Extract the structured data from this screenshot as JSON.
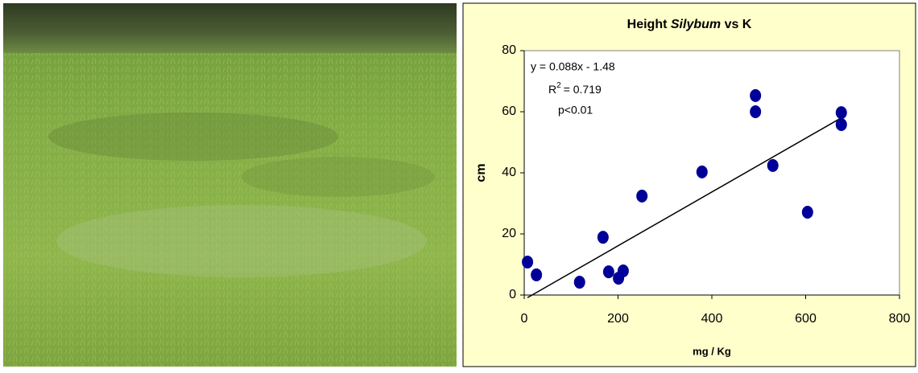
{
  "chart_data": {
    "type": "scatter",
    "title": [
      "Height",
      "Silybum",
      "vs K"
    ],
    "xlabel": "mg / Kg",
    "ylabel": "cm",
    "annotations": {
      "equation": "y = 0.088x - 1.48",
      "r2": [
        "R",
        "2",
        "= 0.719"
      ],
      "p": "p<0.01"
    },
    "x": [
      7,
      26,
      118,
      168,
      180,
      201,
      211,
      251,
      379,
      493,
      493,
      530,
      604,
      676,
      676
    ],
    "values": [
      10.8,
      6.6,
      4.2,
      18.9,
      7.6,
      5.5,
      7.9,
      32.4,
      40.3,
      65.3,
      60,
      42.4,
      27.1,
      59.7,
      55.8
    ],
    "color": "#000099",
    "trendline": {
      "slope": 0.088,
      "intercept": -1.48,
      "color": "#000000"
    },
    "xlim": [
      0,
      800
    ],
    "xticks": [
      0,
      200,
      400,
      600,
      800
    ],
    "ylim": [
      0,
      80
    ],
    "yticks": [
      0,
      20,
      40,
      60,
      80
    ]
  }
}
